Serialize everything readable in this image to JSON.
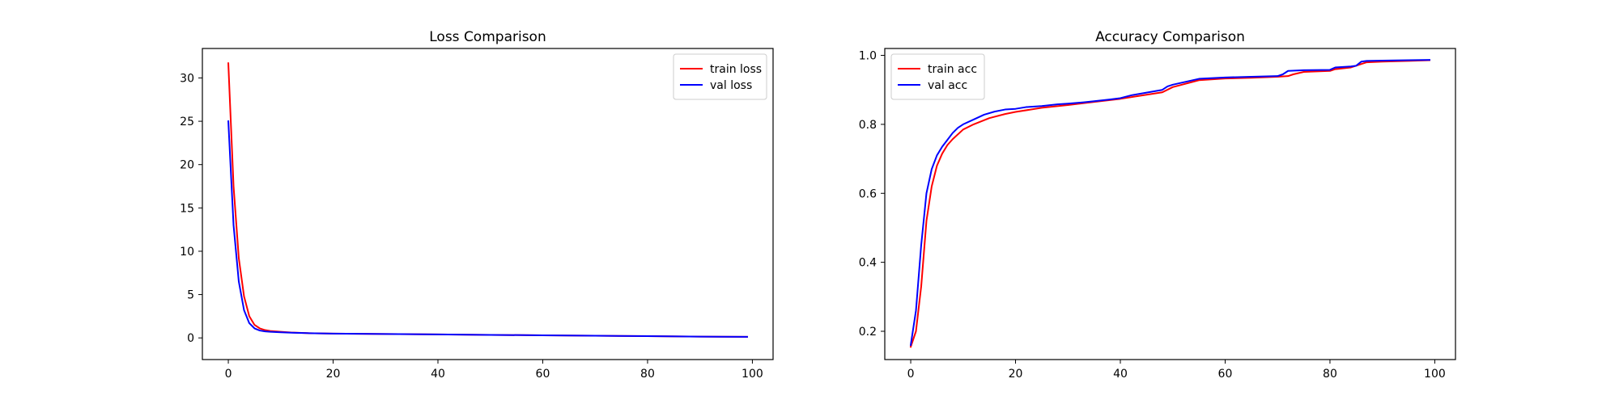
{
  "chart_data": [
    {
      "type": "line",
      "title": "Loss Comparison",
      "xlabel": "",
      "ylabel": "",
      "xlim": [
        -4.95,
        103.95
      ],
      "ylim": [
        -2.5,
        33.4
      ],
      "xticks": [
        0,
        20,
        40,
        60,
        80,
        100
      ],
      "yticks": [
        0,
        5,
        10,
        15,
        20,
        25,
        30
      ],
      "grid": false,
      "legend_position": "upper right",
      "series": [
        {
          "name": "train loss",
          "color": "#ff0000",
          "x": [
            0,
            1,
            2,
            3,
            4,
            5,
            6,
            7,
            8,
            10,
            12,
            15,
            20,
            30,
            40,
            50,
            60,
            70,
            80,
            90,
            99
          ],
          "y": [
            31.7,
            17.5,
            9.2,
            4.8,
            2.5,
            1.5,
            1.1,
            0.9,
            0.8,
            0.7,
            0.62,
            0.55,
            0.5,
            0.45,
            0.4,
            0.35,
            0.3,
            0.25,
            0.2,
            0.15,
            0.12
          ]
        },
        {
          "name": "val loss",
          "color": "#0000ff",
          "x": [
            0,
            1,
            2,
            3,
            4,
            5,
            6,
            7,
            8,
            10,
            12,
            15,
            20,
            30,
            40,
            50,
            60,
            70,
            80,
            90,
            99
          ],
          "y": [
            25.0,
            13.0,
            6.5,
            3.2,
            1.7,
            1.1,
            0.85,
            0.75,
            0.7,
            0.65,
            0.6,
            0.55,
            0.5,
            0.45,
            0.4,
            0.35,
            0.3,
            0.25,
            0.2,
            0.15,
            0.12
          ]
        }
      ]
    },
    {
      "type": "line",
      "title": "Accuracy Comparison",
      "xlabel": "",
      "ylabel": "",
      "xlim": [
        -4.95,
        103.95
      ],
      "ylim": [
        0.118,
        1.02
      ],
      "xticks": [
        0,
        20,
        40,
        60,
        80,
        100
      ],
      "yticks": [
        0.2,
        0.4,
        0.6,
        0.8,
        1.0
      ],
      "ytick_labels": [
        "0.2",
        "0.4",
        "0.6",
        "0.8",
        "1.0"
      ],
      "grid": false,
      "legend_position": "upper left",
      "series": [
        {
          "name": "train acc",
          "color": "#ff0000",
          "x": [
            0,
            1,
            2,
            3,
            4,
            5,
            6,
            7,
            8,
            10,
            12,
            15,
            18,
            20,
            25,
            30,
            35,
            40,
            45,
            48,
            50,
            55,
            60,
            65,
            70,
            72,
            73,
            75,
            80,
            81,
            84,
            86,
            87,
            90,
            95,
            99
          ],
          "y": [
            0.155,
            0.2,
            0.33,
            0.52,
            0.62,
            0.68,
            0.715,
            0.74,
            0.757,
            0.785,
            0.8,
            0.818,
            0.83,
            0.836,
            0.848,
            0.856,
            0.865,
            0.874,
            0.886,
            0.893,
            0.908,
            0.928,
            0.933,
            0.935,
            0.938,
            0.94,
            0.945,
            0.952,
            0.955,
            0.96,
            0.965,
            0.975,
            0.98,
            0.982,
            0.984,
            0.986
          ]
        },
        {
          "name": "val acc",
          "color": "#0000ff",
          "x": [
            0,
            1,
            2,
            3,
            4,
            5,
            6,
            7,
            8,
            9,
            10,
            12,
            14,
            16,
            18,
            20,
            22,
            25,
            28,
            30,
            33,
            35,
            38,
            40,
            42,
            45,
            48,
            49,
            50,
            55,
            60,
            65,
            70,
            71,
            72,
            75,
            80,
            81,
            84,
            85,
            86,
            87,
            90,
            95,
            99
          ],
          "y": [
            0.16,
            0.26,
            0.45,
            0.6,
            0.67,
            0.71,
            0.735,
            0.755,
            0.775,
            0.79,
            0.8,
            0.814,
            0.828,
            0.837,
            0.843,
            0.845,
            0.85,
            0.853,
            0.858,
            0.86,
            0.864,
            0.867,
            0.872,
            0.876,
            0.884,
            0.892,
            0.9,
            0.91,
            0.915,
            0.932,
            0.936,
            0.938,
            0.94,
            0.945,
            0.955,
            0.957,
            0.958,
            0.965,
            0.968,
            0.97,
            0.982,
            0.984,
            0.985,
            0.986,
            0.987
          ]
        }
      ]
    }
  ]
}
